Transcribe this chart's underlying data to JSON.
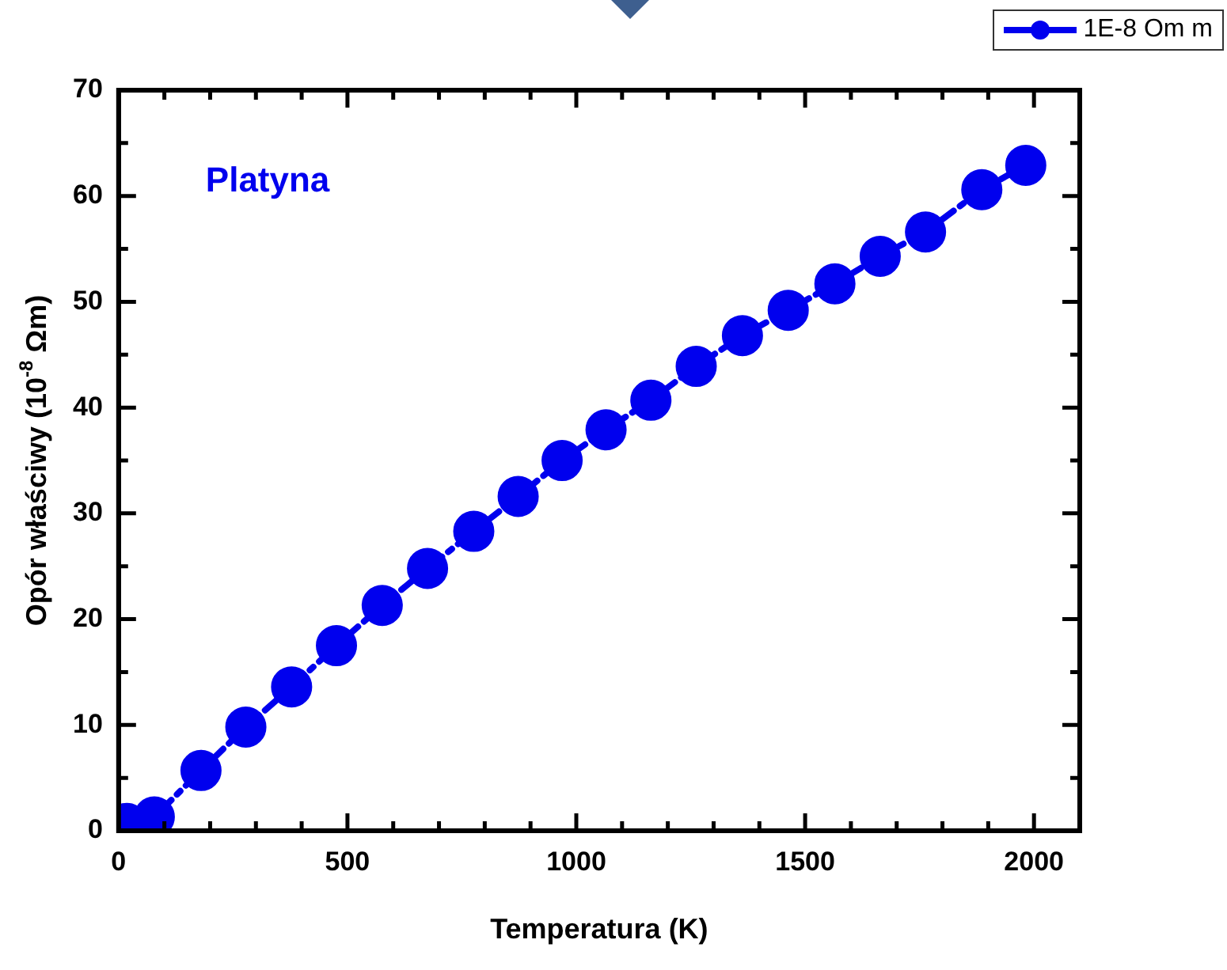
{
  "chart_data": {
    "type": "line",
    "xlabel": "Temperatura (K)",
    "ylabel": "Opór właściwy (10$^{-8}$ Ωm)",
    "annotations": [
      "Platyna"
    ],
    "x": [
      18,
      78,
      180,
      278,
      378,
      476,
      576,
      675,
      776,
      873,
      969,
      1065,
      1163,
      1262,
      1363,
      1463,
      1565,
      1664,
      1763,
      1886,
      1982
    ],
    "series": [
      {
        "name": "1E-8 Om m",
        "color": "#0000ee",
        "values": [
          0.7,
          1.3,
          5.7,
          9.8,
          13.6,
          17.5,
          21.3,
          24.8,
          28.3,
          31.6,
          35.0,
          37.9,
          40.7,
          43.9,
          46.8,
          49.2,
          51.7,
          54.3,
          56.6,
          60.6,
          62.9
        ]
      }
    ],
    "xlim": [
      0,
      2100
    ],
    "xticks": [
      0,
      {
        "value": 100,
        "label": null
      },
      {
        "value": 200,
        "label": null
      },
      {
        "value": 300,
        "label": null
      },
      {
        "value": 400,
        "label": null
      },
      500,
      {
        "value": 600,
        "label": null
      },
      {
        "value": 700,
        "label": null
      },
      {
        "value": 800,
        "label": null
      },
      {
        "value": 900,
        "label": null
      },
      1000,
      {
        "value": 1100,
        "label": null
      },
      {
        "value": 1200,
        "label": null
      },
      {
        "value": 1300,
        "label": null
      },
      {
        "value": 1400,
        "label": null
      },
      1500,
      {
        "value": 1600,
        "label": null
      },
      {
        "value": 1700,
        "label": null
      },
      {
        "value": 1800,
        "label": null
      },
      {
        "value": 1900,
        "label": null
      },
      2000
    ],
    "ylim": [
      0,
      70
    ],
    "yticks": [
      0,
      {
        "value": 5,
        "label": null
      },
      10,
      {
        "value": 15,
        "label": null
      },
      20,
      {
        "value": 25,
        "label": null
      },
      30,
      {
        "value": 35,
        "label": null
      },
      40,
      {
        "value": 45,
        "label": null
      },
      50,
      {
        "value": 55,
        "label": null
      },
      60,
      {
        "value": 65,
        "label": null
      },
      70
    ],
    "grid": false,
    "legend": "top right",
    "marker": "circle",
    "line_style": "dashed"
  }
}
